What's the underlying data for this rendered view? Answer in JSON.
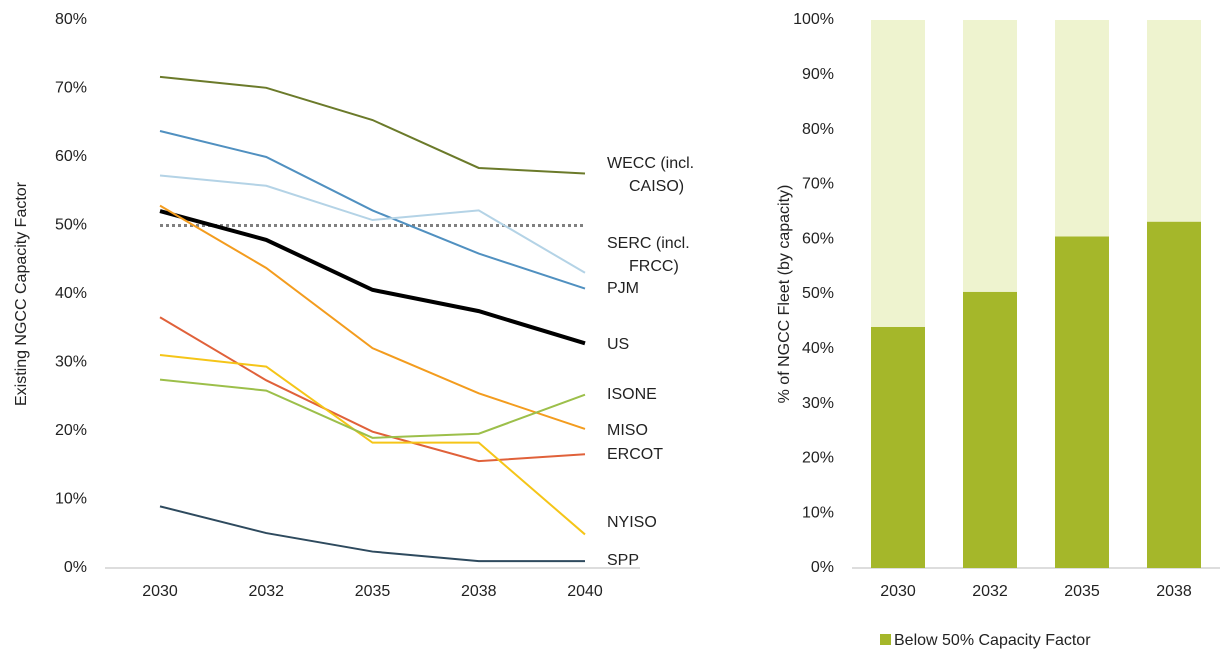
{
  "chart_data": [
    {
      "type": "line",
      "y_label": "Existing NGCC Capacity Factor",
      "categories": [
        "2030",
        "2032",
        "2035",
        "2038",
        "2040"
      ],
      "ylim": [
        0,
        80
      ],
      "yticks": [
        {
          "value": 0,
          "label": "0%"
        },
        {
          "value": 10,
          "label": "10%"
        },
        {
          "value": 20,
          "label": "20%"
        },
        {
          "value": 30,
          "label": "30%"
        },
        {
          "value": 40,
          "label": "40%"
        },
        {
          "value": 50,
          "label": "50%"
        },
        {
          "value": 60,
          "label": "60%"
        },
        {
          "value": 70,
          "label": "70%"
        },
        {
          "value": 80,
          "label": "80%"
        }
      ],
      "grid": false,
      "reference_line": {
        "value": 50,
        "color": "#808080"
      },
      "series": [
        {
          "name": "WECC (incl. CAISO)",
          "color": "#6b7a2a",
          "values": [
            71.7,
            70.1,
            65.4,
            58.4,
            57.6
          ]
        },
        {
          "name": "PJM",
          "color": "#5090c0",
          "values": [
            63.8,
            60.0,
            52.2,
            45.9,
            40.8
          ]
        },
        {
          "name": "SERC (incl. FRCC)",
          "color": "#b4d3e6",
          "values": [
            57.3,
            55.8,
            50.8,
            52.2,
            43.1
          ]
        },
        {
          "name": "US",
          "color": "#000000",
          "line_width": 4,
          "values": [
            52.1,
            47.9,
            40.6,
            37.5,
            32.8
          ]
        },
        {
          "name": "MISO",
          "color": "#f39c1e",
          "values": [
            52.9,
            43.8,
            32.1,
            25.5,
            20.3
          ]
        },
        {
          "name": "ERCOT",
          "color": "#e0613a",
          "values": [
            36.6,
            27.4,
            19.9,
            15.6,
            16.6
          ]
        },
        {
          "name": "NYISO",
          "color": "#f5c518",
          "values": [
            31.1,
            29.4,
            18.3,
            18.3,
            4.9
          ]
        },
        {
          "name": "ISONE",
          "color": "#9cbf4a",
          "values": [
            27.5,
            25.9,
            19.0,
            19.6,
            25.3
          ]
        },
        {
          "name": "SPP",
          "color": "#2e4a5e",
          "values": [
            9.0,
            5.1,
            2.4,
            1.0,
            1.0
          ]
        }
      ]
    },
    {
      "type": "stacked_bar",
      "y_label": "% of NGCC Fleet (by capacity)",
      "categories": [
        "2030",
        "2032",
        "2035",
        "2038"
      ],
      "ylim": [
        0,
        100
      ],
      "yticks": [
        {
          "value": 0,
          "label": "0%"
        },
        {
          "value": 10,
          "label": "10%"
        },
        {
          "value": 20,
          "label": "20%"
        },
        {
          "value": 30,
          "label": "30%"
        },
        {
          "value": 40,
          "label": "40%"
        },
        {
          "value": 50,
          "label": "50%"
        },
        {
          "value": 60,
          "label": "60%"
        },
        {
          "value": 70,
          "label": "70%"
        },
        {
          "value": 80,
          "label": "80%"
        },
        {
          "value": 90,
          "label": "90%"
        },
        {
          "value": 100,
          "label": "100%"
        }
      ],
      "grid": false,
      "legend": "bottom",
      "series": [
        {
          "name": "Below 50% Capacity Factor",
          "color": "#a5b72a",
          "values": [
            44.0,
            50.4,
            60.5,
            63.2
          ]
        },
        {
          "color": "#eef3cf",
          "values": [
            56.0,
            49.6,
            39.5,
            36.8
          ]
        }
      ]
    }
  ]
}
